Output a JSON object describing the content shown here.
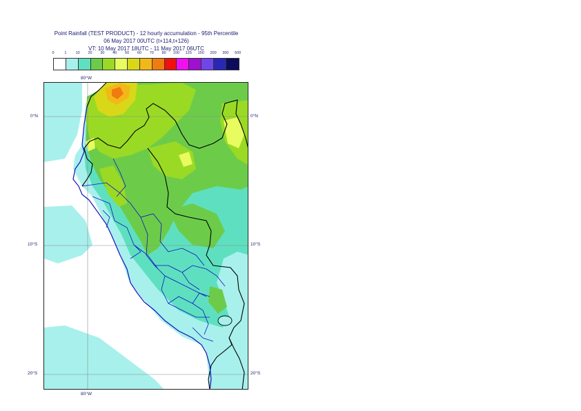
{
  "title": {
    "line1": "Point Rainfall (TEST PRODUCT) - 12 hourly accumulation - 95th Percentile",
    "line2": "06 May 2017 00UTC (t+114,t+126)",
    "line3": "VT: 10 May 2017 18UTC - 11 May 2017 06UTC"
  },
  "legend": {
    "labels": [
      "0",
      "1",
      "10",
      "20",
      "30",
      "40",
      "50",
      "60",
      "70",
      "80",
      "100",
      "125",
      "150",
      "200",
      "300",
      "500"
    ],
    "colors": [
      "#ffffff",
      "#a8f0ec",
      "#5ee0c0",
      "#6ccc4a",
      "#9ada24",
      "#e8fc60",
      "#d8d818",
      "#f2b818",
      "#f07c10",
      "#f01010",
      "#f010f0",
      "#a010d0",
      "#7046e8",
      "#2828b4",
      "#0c0c5c"
    ]
  },
  "map": {
    "lon_labels": {
      "top": "80°W",
      "bottom": "80°W"
    },
    "lat_labels": {
      "lat0": "0°N",
      "lat10": "10°S",
      "lat20": "20°S"
    },
    "colors": {
      "ocean": "#ffffff",
      "light": "#a8f0ec",
      "teal": "#5ee0c0",
      "green": "#6ccc4a",
      "lime": "#9ada24",
      "yellow": "#e8fc60",
      "mustard": "#d8d818",
      "orange": "#f2b818",
      "red": "#f07c10",
      "border": "#000000",
      "admin": "#1010c0",
      "grid": "#8a8a8a"
    }
  }
}
